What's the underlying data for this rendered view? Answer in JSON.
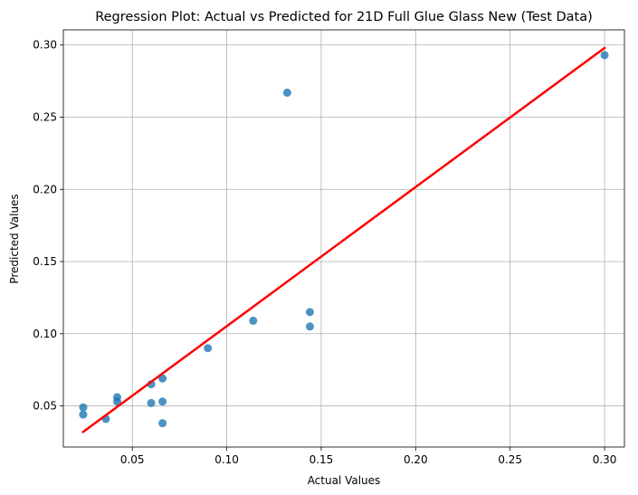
{
  "chart_data": {
    "type": "scatter",
    "title": "Regression Plot: Actual vs Predicted for 21D Full Glue Glass New (Test Data)",
    "xlabel": "Actual Values",
    "ylabel": "Predicted Values",
    "xlim": [
      0.0135,
      0.3105
    ],
    "ylim": [
      0.0215,
      0.3105
    ],
    "xticks": [
      0.05,
      0.1,
      0.15,
      0.2,
      0.25,
      0.3
    ],
    "xtick_labels": [
      "0.05",
      "0.10",
      "0.15",
      "0.20",
      "0.25",
      "0.30"
    ],
    "yticks": [
      0.05,
      0.1,
      0.15,
      0.2,
      0.25,
      0.3
    ],
    "ytick_labels": [
      "0.05",
      "0.10",
      "0.15",
      "0.20",
      "0.25",
      "0.30"
    ],
    "grid": true,
    "points": [
      {
        "x": 0.024,
        "y": 0.049
      },
      {
        "x": 0.024,
        "y": 0.044
      },
      {
        "x": 0.036,
        "y": 0.041
      },
      {
        "x": 0.042,
        "y": 0.056
      },
      {
        "x": 0.042,
        "y": 0.053
      },
      {
        "x": 0.06,
        "y": 0.065
      },
      {
        "x": 0.06,
        "y": 0.052
      },
      {
        "x": 0.066,
        "y": 0.069
      },
      {
        "x": 0.066,
        "y": 0.053
      },
      {
        "x": 0.066,
        "y": 0.038
      },
      {
        "x": 0.09,
        "y": 0.09
      },
      {
        "x": 0.114,
        "y": 0.109
      },
      {
        "x": 0.132,
        "y": 0.267
      },
      {
        "x": 0.144,
        "y": 0.115
      },
      {
        "x": 0.144,
        "y": 0.105
      },
      {
        "x": 0.3,
        "y": 0.293
      }
    ],
    "regression_line": {
      "x": [
        0.024,
        0.3
      ],
      "y": [
        0.032,
        0.298
      ]
    },
    "colors": {
      "points": "#1f77b4",
      "line": "#ff0000",
      "grid": "#b0b0b0"
    }
  }
}
